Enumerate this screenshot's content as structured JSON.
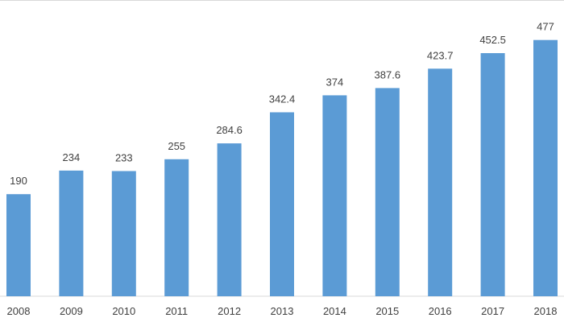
{
  "chart_data": {
    "type": "bar",
    "categories": [
      "2008",
      "2009",
      "2010",
      "2011",
      "2012",
      "2013",
      "2014",
      "2015",
      "2016",
      "2017",
      "2018"
    ],
    "values": [
      190,
      234,
      233,
      255,
      284.6,
      342.4,
      374,
      387.6,
      423.7,
      452.5,
      477
    ],
    "data_labels": [
      "190",
      "234",
      "233",
      "255",
      "284.6",
      "342.4",
      "374",
      "387.6",
      "423.7",
      "452.5",
      "477"
    ],
    "title": "",
    "xlabel": "",
    "ylabel": "",
    "ylim": [
      0,
      520
    ],
    "grid": false,
    "legend": "none",
    "colors": {
      "bar": "#5b9bd5",
      "text": "#404040",
      "axis": "#d9d9d9"
    }
  }
}
